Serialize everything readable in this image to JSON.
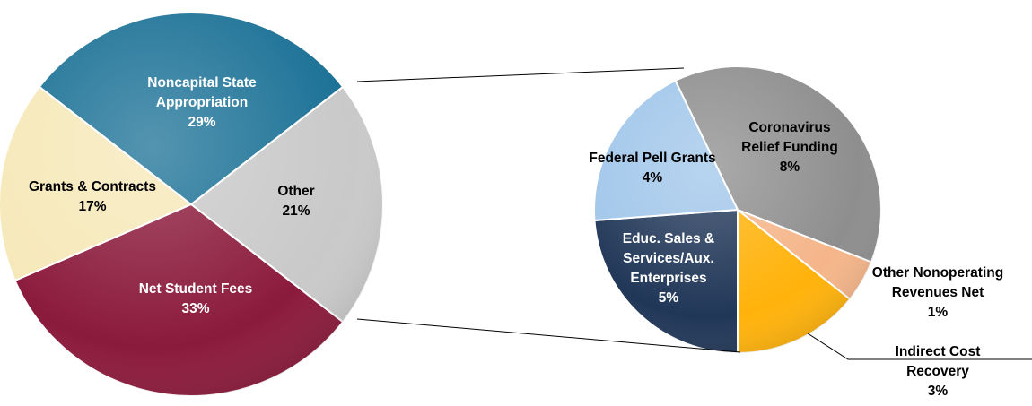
{
  "chart_data": [
    {
      "type": "pie",
      "categories": [
        "Other",
        "Net Student Fees",
        "Grants & Contracts",
        "Noncapital State Appropriation"
      ],
      "values": [
        21,
        33,
        17,
        29
      ],
      "value_labels": [
        "21%",
        "33%",
        "17%",
        "29%"
      ],
      "colors": [
        "#c9c9c9",
        "#8b1a3c",
        "#f6e8b8",
        "#1b7196"
      ]
    },
    {
      "type": "pie",
      "categories": [
        "Indirect Cost Recovery",
        "Educ. Sales & Services/Aux. Enterprises",
        "Federal Pell Grants",
        "Coronavirus Relief Funding",
        "Other Nonoperating Revenues Net"
      ],
      "values": [
        3,
        5,
        4,
        8,
        1
      ],
      "value_labels": [
        "3%",
        "5%",
        "4%",
        "8%",
        "1%"
      ],
      "colors": [
        "#ffb20a",
        "#213758",
        "#a0c6ea",
        "#8e8e8e",
        "#f5b589"
      ]
    }
  ]
}
